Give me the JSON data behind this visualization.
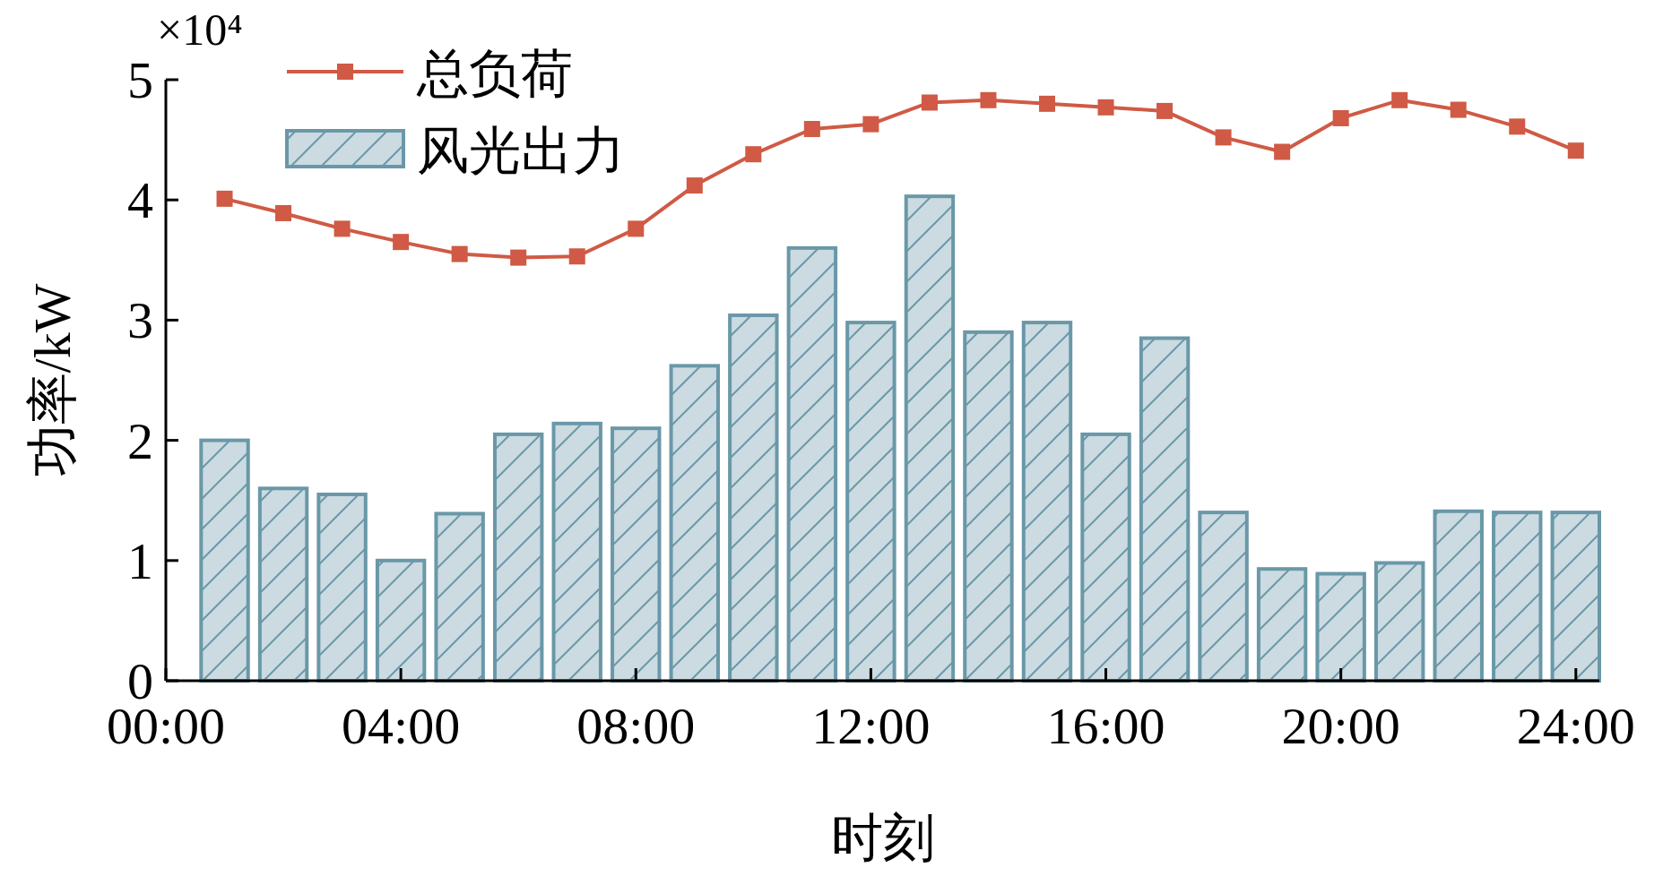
{
  "chart_data": {
    "type": "bar",
    "xlabel": "时刻",
    "ylabel": "功率/kW",
    "annotations": [
      "×10⁴"
    ],
    "x": [
      1,
      2,
      3,
      4,
      5,
      6,
      7,
      8,
      9,
      10,
      11,
      12,
      13,
      14,
      15,
      16,
      17,
      18,
      19,
      20,
      21,
      22,
      23,
      24
    ],
    "series": [
      {
        "name": "总负荷",
        "type": "line",
        "color": "#d05a45",
        "marker": "square",
        "values": [
          4.01,
          3.89,
          3.76,
          3.65,
          3.55,
          3.52,
          3.53,
          3.76,
          4.12,
          4.38,
          4.59,
          4.63,
          4.81,
          4.83,
          4.8,
          4.77,
          4.74,
          4.52,
          4.4,
          4.68,
          4.83,
          4.75,
          4.61,
          4.41
        ]
      },
      {
        "name": "风光出力",
        "color": "#6a98a8",
        "values": [
          2.0,
          1.6,
          1.55,
          1.0,
          1.39,
          2.05,
          2.14,
          2.1,
          2.62,
          3.04,
          3.6,
          2.98,
          4.03,
          2.9,
          2.98,
          2.05,
          2.85,
          1.4,
          0.93,
          0.89,
          0.98,
          1.41,
          1.4,
          1.4
        ]
      }
    ],
    "xlim": [
      0,
      24.4
    ],
    "xticks": [
      {
        "value": 0,
        "label": "00:00"
      },
      {
        "value": 4,
        "label": "04:00"
      },
      {
        "value": 8,
        "label": "08:00"
      },
      {
        "value": 12,
        "label": "12:00"
      },
      {
        "value": 16,
        "label": "16:00"
      },
      {
        "value": 20,
        "label": "20:00"
      },
      {
        "value": 24,
        "label": "24:00"
      }
    ],
    "ylim": [
      0,
      5
    ],
    "yticks": [
      0,
      1,
      2,
      3,
      4,
      5
    ],
    "legend": "top left",
    "grid": false
  }
}
